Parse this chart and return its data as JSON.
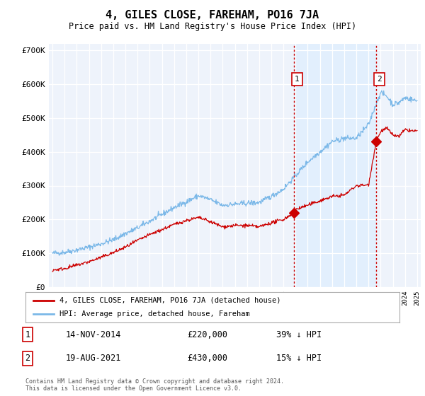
{
  "title": "4, GILES CLOSE, FAREHAM, PO16 7JA",
  "subtitle": "Price paid vs. HM Land Registry's House Price Index (HPI)",
  "ylim": [
    0,
    720000
  ],
  "yticks": [
    0,
    100000,
    200000,
    300000,
    400000,
    500000,
    600000,
    700000
  ],
  "ytick_labels": [
    "£0",
    "£100K",
    "£200K",
    "£300K",
    "£400K",
    "£500K",
    "£600K",
    "£700K"
  ],
  "hpi_color": "#7bb8e8",
  "price_color": "#cc0000",
  "vline_color": "#cc0000",
  "shade_color": "#ddeeff",
  "sale1_year": 2014.88,
  "sale1_price": 220000,
  "sale1_label": "1",
  "sale1_date": "14-NOV-2014",
  "sale1_pct": "39% ↓ HPI",
  "sale2_year": 2021.63,
  "sale2_price": 430000,
  "sale2_label": "2",
  "sale2_date": "19-AUG-2021",
  "sale2_pct": "15% ↓ HPI",
  "legend_property": "4, GILES CLOSE, FAREHAM, PO16 7JA (detached house)",
  "legend_hpi": "HPI: Average price, detached house, Fareham",
  "footer": "Contains HM Land Registry data © Crown copyright and database right 2024.\nThis data is licensed under the Open Government Licence v3.0.",
  "bg_color": "#eef3fb"
}
